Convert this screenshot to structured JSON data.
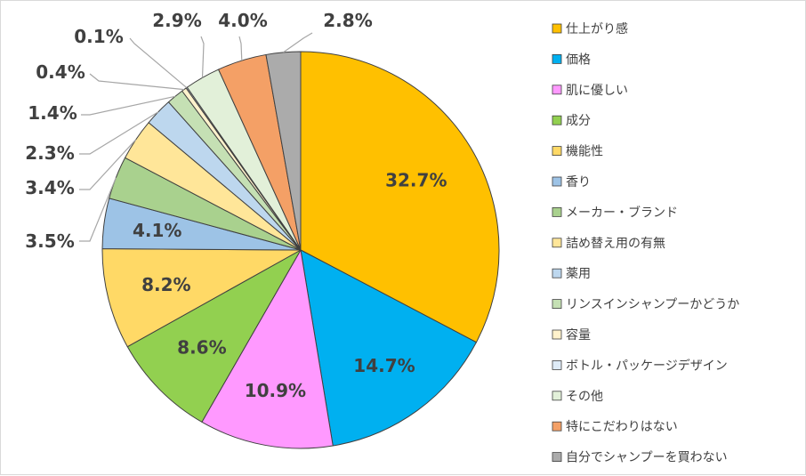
{
  "chart_data": {
    "type": "pie",
    "title": "",
    "categories": [
      "仕上がり感",
      "価格",
      "肌に優しい",
      "成分",
      "機能性",
      "香り",
      "メーカー・ブランド",
      "詰め替え用の有無",
      "薬用",
      "リンスインシャンプーかどうか",
      "容量",
      "ボトル・パッケージデザイン",
      "その他",
      "特にこだわりはない",
      "自分でシャンプーを買わない"
    ],
    "values": [
      32.7,
      14.7,
      10.9,
      8.6,
      8.2,
      4.1,
      3.5,
      3.4,
      2.3,
      1.4,
      0.4,
      0.1,
      2.9,
      4.0,
      2.8
    ],
    "labels": [
      "32.7%",
      "14.7%",
      "10.9%",
      "8.6%",
      "8.2%",
      "4.1%",
      "3.5%",
      "3.4%",
      "2.3%",
      "1.4%",
      "0.4%",
      "0.1%",
      "2.9%",
      "4.0%",
      "2.8%"
    ],
    "colors": [
      "#FFC000",
      "#00B0F0",
      "#FF99FF",
      "#92D050",
      "#FFD966",
      "#9DC3E6",
      "#A9D18E",
      "#FFE699",
      "#BDD7EE",
      "#C5E0B4",
      "#FFF2CC",
      "#DEEBF7",
      "#E2F0D9",
      "#F4A066",
      "#ABABAB"
    ],
    "legend_position": "right"
  }
}
